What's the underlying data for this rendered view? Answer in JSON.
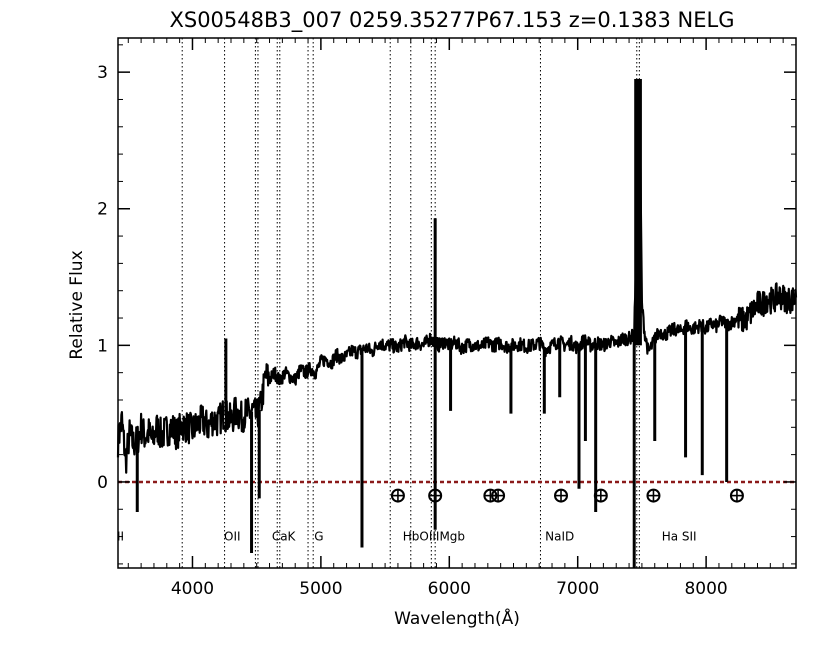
{
  "chart_data": {
    "type": "line",
    "title": "XS00548B3_007  0259.35277P67.153  z=0.1383   NELG",
    "xlabel": "Wavelength(Å)",
    "ylabel": "Relative Flux",
    "xlim": [
      3420,
      8700
    ],
    "ylim": [
      -0.63,
      3.25
    ],
    "x_ticks": [
      4000,
      5000,
      6000,
      7000,
      8000
    ],
    "y_ticks": [
      0,
      1,
      2,
      3
    ],
    "grid": false,
    "series": [
      {
        "color": "#000000",
        "x": [
          3420,
          3450,
          3480,
          3510,
          3540,
          3570,
          3600,
          3630,
          3660,
          3690,
          3720,
          3760,
          3800,
          3840,
          3880,
          3920,
          3960,
          4000,
          4040,
          4080,
          4120,
          4160,
          4200,
          4240,
          4270,
          4300,
          4340,
          4380,
          4410,
          4440,
          4470,
          4500,
          4530,
          4570,
          4600,
          4640,
          4680,
          4720,
          4760,
          4800,
          4840,
          4880,
          4920,
          4960,
          5000,
          5040,
          5080,
          5120,
          5160,
          5200,
          5240,
          5280,
          5320,
          5360,
          5400,
          5450,
          5500,
          5550,
          5600,
          5650,
          5700,
          5750,
          5800,
          5850,
          5890,
          5920,
          5960,
          6000,
          6050,
          6100,
          6150,
          6200,
          6250,
          6300,
          6350,
          6400,
          6450,
          6500,
          6550,
          6600,
          6650,
          6700,
          6750,
          6800,
          6850,
          6900,
          6950,
          7000,
          7050,
          7100,
          7150,
          7200,
          7250,
          7300,
          7350,
          7400,
          7440,
          7460,
          7480,
          7500,
          7520,
          7550,
          7580,
          7600,
          7640,
          7680,
          7720,
          7760,
          7800,
          7840,
          7880,
          7920,
          7960,
          8000,
          8040,
          8080,
          8120,
          8160,
          8200,
          8240,
          8280,
          8320,
          8360,
          8400,
          8440,
          8480,
          8520,
          8560,
          8600,
          8640,
          8680,
          8700
        ],
        "y": [
          0.3,
          0.45,
          0.15,
          0.35,
          0.28,
          0.3,
          0.4,
          0.33,
          0.36,
          0.3,
          0.4,
          0.34,
          0.38,
          0.4,
          0.35,
          0.42,
          0.4,
          0.38,
          0.42,
          0.45,
          0.4,
          0.46,
          0.44,
          0.5,
          0.48,
          0.45,
          0.52,
          0.47,
          0.5,
          0.5,
          0.52,
          0.48,
          0.55,
          0.78,
          0.75,
          0.8,
          0.74,
          0.8,
          0.77,
          0.75,
          0.82,
          0.8,
          0.83,
          0.8,
          0.88,
          0.9,
          0.87,
          0.93,
          0.9,
          0.92,
          0.96,
          0.95,
          0.97,
          0.98,
          0.95,
          1.02,
          1.0,
          1.0,
          0.98,
          1.03,
          1.0,
          1.02,
          1.0,
          1.05,
          1.02,
          1.0,
          1.03,
          1.0,
          1.02,
          0.98,
          1.01,
          1.0,
          0.99,
          1.02,
          1.0,
          1.02,
          0.99,
          1.0,
          1.01,
          0.99,
          1.0,
          1.02,
          0.97,
          1.0,
          1.03,
          1.0,
          1.02,
          0.98,
          1.04,
          1.0,
          1.02,
          1.0,
          1.03,
          1.01,
          1.05,
          1.05,
          1.08,
          1.85,
          2.95,
          1.3,
          1.1,
          0.95,
          1.0,
          1.05,
          1.1,
          1.08,
          1.1,
          1.12,
          1.1,
          1.15,
          1.12,
          1.13,
          1.15,
          1.12,
          1.16,
          1.14,
          1.18,
          1.15,
          1.17,
          1.2,
          1.18,
          1.2,
          1.25,
          1.3,
          1.3,
          1.35,
          1.32,
          1.37,
          1.35,
          1.33,
          1.34,
          1.35
        ]
      }
    ],
    "absorption_dips": [
      {
        "x": 3570,
        "y": -0.22
      },
      {
        "x": 4460,
        "y": -0.52
      },
      {
        "x": 4520,
        "y": -0.12
      },
      {
        "x": 5320,
        "y": -0.48
      },
      {
        "x": 5890,
        "y": -0.35
      },
      {
        "x": 6010,
        "y": 0.52
      },
      {
        "x": 6480,
        "y": 0.5
      },
      {
        "x": 6740,
        "y": 0.5
      },
      {
        "x": 6860,
        "y": 0.62
      },
      {
        "x": 7010,
        "y": -0.05
      },
      {
        "x": 7060,
        "y": 0.3
      },
      {
        "x": 7140,
        "y": -0.22
      },
      {
        "x": 7600,
        "y": 0.3
      },
      {
        "x": 7840,
        "y": 0.18
      },
      {
        "x": 7970,
        "y": 0.05
      },
      {
        "x": 8160,
        "y": 0.0
      }
    ],
    "emission_spikes": [
      {
        "x": 4260,
        "y": 1.05
      },
      {
        "x": 5890,
        "y": 1.93
      },
      {
        "x": 7470,
        "y": 2.95
      }
    ],
    "zero_line": {
      "y": 0,
      "color": "#8b1a1a",
      "style": "dashed"
    },
    "line_markers": {
      "wavelengths": [
        3920,
        4250,
        4490,
        4510,
        4660,
        4680,
        4900,
        4940,
        5540,
        5700,
        5860,
        5890,
        6710,
        7460,
        7480
      ],
      "labels": [
        {
          "text": "II",
          "x": 3440
        },
        {
          "text": "OII",
          "x": 4310
        },
        {
          "text": "CaK",
          "x": 4710
        },
        {
          "text": "G",
          "x": 4985
        },
        {
          "text": "HbOIIIMgb",
          "x": 5880
        },
        {
          "text": "NaID",
          "x": 6860
        },
        {
          "text": "Ha SII",
          "x": 7790
        }
      ]
    },
    "telluric_markers": {
      "x": [
        5600,
        5890,
        6320,
        6380,
        6870,
        7180,
        7590,
        8240
      ],
      "y": -0.1
    }
  }
}
